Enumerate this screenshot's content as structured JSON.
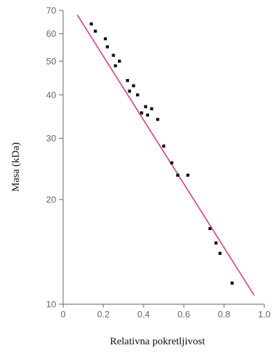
{
  "chart_data": {
    "type": "scatter",
    "title": "",
    "xlabel": "Relativna pokretljivost",
    "ylabel": "Masa (kDa)",
    "xlim": [
      0,
      1.0
    ],
    "ylim": [
      10,
      70
    ],
    "y_scale": "log",
    "grid": false,
    "x_ticks": [
      "0",
      "0.2",
      "0.4",
      "0.6",
      "0.8",
      "1.0"
    ],
    "x_tick_values": [
      0,
      0.2,
      0.4,
      0.6,
      0.8,
      1.0
    ],
    "y_ticks": [
      "10",
      "20",
      "30",
      "40",
      "50",
      "60",
      "70"
    ],
    "y_tick_values": [
      10,
      20,
      30,
      40,
      50,
      60,
      70
    ],
    "points": [
      {
        "x": 0.14,
        "y": 64
      },
      {
        "x": 0.16,
        "y": 61
      },
      {
        "x": 0.21,
        "y": 58
      },
      {
        "x": 0.22,
        "y": 55
      },
      {
        "x": 0.25,
        "y": 52
      },
      {
        "x": 0.26,
        "y": 48.5
      },
      {
        "x": 0.28,
        "y": 50
      },
      {
        "x": 0.32,
        "y": 44
      },
      {
        "x": 0.33,
        "y": 41
      },
      {
        "x": 0.35,
        "y": 42.5
      },
      {
        "x": 0.37,
        "y": 40
      },
      {
        "x": 0.39,
        "y": 35.5
      },
      {
        "x": 0.41,
        "y": 37
      },
      {
        "x": 0.42,
        "y": 35
      },
      {
        "x": 0.44,
        "y": 36.5
      },
      {
        "x": 0.47,
        "y": 34
      },
      {
        "x": 0.5,
        "y": 28.5
      },
      {
        "x": 0.54,
        "y": 25.5
      },
      {
        "x": 0.57,
        "y": 23.5
      },
      {
        "x": 0.62,
        "y": 23.5
      },
      {
        "x": 0.73,
        "y": 16.5
      },
      {
        "x": 0.76,
        "y": 15
      },
      {
        "x": 0.78,
        "y": 14
      },
      {
        "x": 0.84,
        "y": 11.5
      }
    ],
    "fit_line": {
      "x": [
        0.07,
        0.95
      ],
      "y": [
        68,
        10.6
      ],
      "color": "#e8318a"
    },
    "point_color": "#111111",
    "axis_color": "#7a7a7a"
  }
}
